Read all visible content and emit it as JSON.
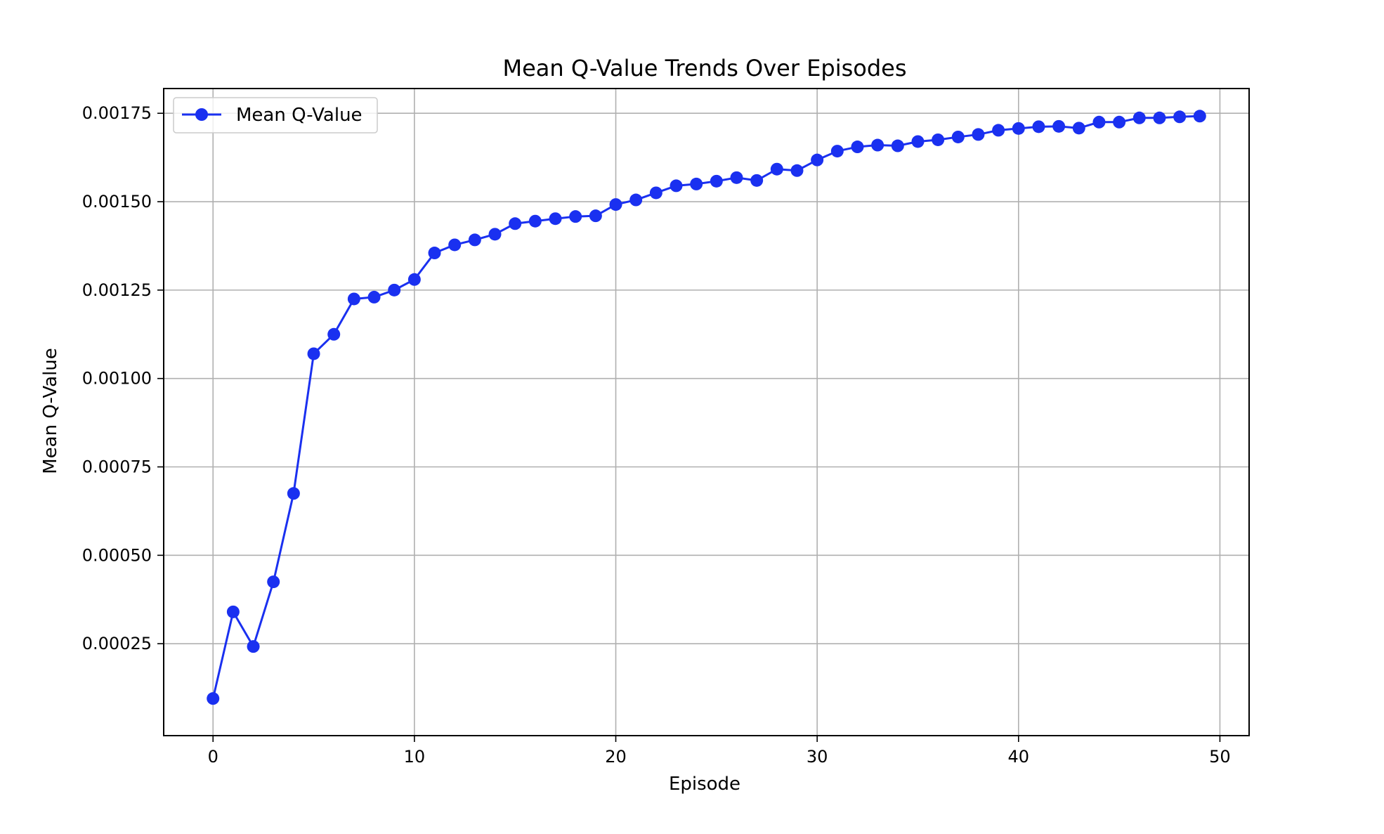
{
  "chart_data": {
    "type": "line",
    "title": "Mean Q-Value Trends Over Episodes",
    "xlabel": "Episode",
    "ylabel": "Mean Q-Value",
    "xlim": [
      -2.45,
      51.45
    ],
    "ylim": [
      -1e-05,
      0.00182
    ],
    "xticks": [
      0,
      10,
      20,
      30,
      40,
      50
    ],
    "xtick_labels": [
      "0",
      "10",
      "20",
      "30",
      "40",
      "50"
    ],
    "yticks": [
      0.00025,
      0.0005,
      0.00075,
      0.001,
      0.00125,
      0.0015,
      0.00175
    ],
    "ytick_labels": [
      "0.00025",
      "0.00050",
      "0.00075",
      "0.00100",
      "0.00125",
      "0.00150",
      "0.00175"
    ],
    "grid": true,
    "legend_position": "top-left",
    "series": [
      {
        "name": "Mean Q-Value",
        "color": "#1a30f0",
        "marker": "circle",
        "x": [
          0,
          1,
          2,
          3,
          4,
          5,
          6,
          7,
          8,
          9,
          10,
          11,
          12,
          13,
          14,
          15,
          16,
          17,
          18,
          19,
          20,
          21,
          22,
          23,
          24,
          25,
          26,
          27,
          28,
          29,
          30,
          31,
          32,
          33,
          34,
          35,
          36,
          37,
          38,
          39,
          40,
          41,
          42,
          43,
          44,
          45,
          46,
          47,
          48,
          49
        ],
        "values": [
          9.5e-05,
          0.00034,
          0.000242,
          0.000425,
          0.000675,
          0.00107,
          0.001125,
          0.001225,
          0.00123,
          0.00125,
          0.00128,
          0.001355,
          0.001378,
          0.001392,
          0.001408,
          0.001438,
          0.001445,
          0.001452,
          0.001458,
          0.00146,
          0.001492,
          0.001505,
          0.001525,
          0.001545,
          0.00155,
          0.001558,
          0.001568,
          0.00156,
          0.001592,
          0.001588,
          0.001618,
          0.001643,
          0.001655,
          0.00166,
          0.001658,
          0.00167,
          0.001675,
          0.001683,
          0.00169,
          0.001702,
          0.001707,
          0.001712,
          0.001713,
          0.001708,
          0.001725,
          0.001725,
          0.001737,
          0.001737,
          0.00174,
          0.001742
        ]
      }
    ]
  }
}
